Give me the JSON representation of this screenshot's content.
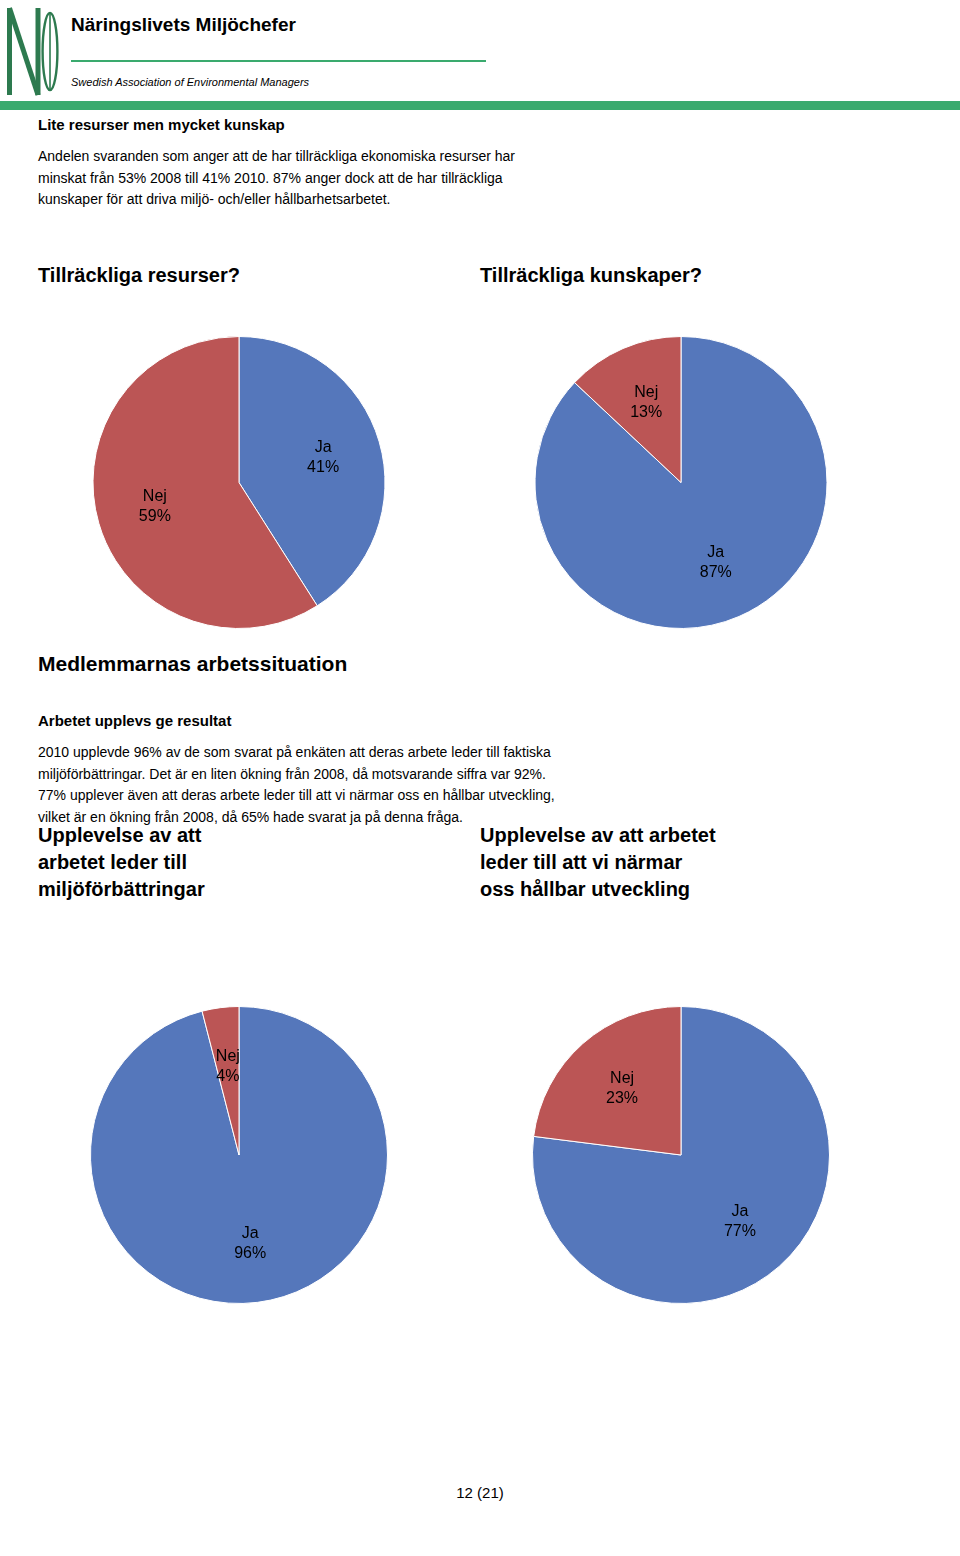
{
  "logo_name": "Näringslivets Miljöchefer",
  "logo_subtitle": "Swedish Association of Environmental Managers",
  "logo_color": "#2d7a4f",
  "rule_color": "#3aaa6e",
  "header_bold": "Lite resurser men mycket kunskap",
  "header_text": "Andelen svaranden som anger att de har tillräckliga ekonomiska resurser har\nminskat från 53% 2008 till 41% 2010. 87% anger dock att de har tillräckliga\nkunskaper för att driva miljö- och/eller hållbarhetsarbetet.",
  "section_title": "Medlemmarnas arbetssituation",
  "section_subtitle": "Arbetet upplevs ge resultat",
  "section_text": "2010 upplevde 96% av de som svarat på enkäten att deras arbete leder till faktiska\nmiljöförbättringar. Det är en liten ökning från 2008, då motsvarande siffra var 92%.\n77% upplever även att deras arbete leder till att vi närmar oss en hållbar utveckling,\nvilket är en ökning från 2008, då 65% hade svarat ja på denna fråga.",
  "page_number": "12 (21)",
  "chart_data": [
    {
      "type": "pie",
      "title": "Tillräckliga resurser?",
      "categories": [
        "Ja",
        "Nej"
      ],
      "values": [
        41,
        59
      ],
      "value_labels": [
        "41%",
        "59%"
      ],
      "colors": [
        "#5577bb",
        "#bb5555"
      ],
      "data_labels": true
    },
    {
      "type": "pie",
      "title": "Tillräckliga kunskaper?",
      "categories": [
        "Ja",
        "Nej"
      ],
      "values": [
        87,
        13
      ],
      "value_labels": [
        "87%",
        "13%"
      ],
      "colors": [
        "#5577bb",
        "#bb5555"
      ],
      "data_labels": true
    },
    {
      "type": "pie",
      "title": "Upplevelse av att\narbetet leder till\nmiljöförbättringar",
      "categories": [
        "Ja",
        "Nej"
      ],
      "values": [
        96,
        4
      ],
      "value_labels": [
        "96%",
        "4%"
      ],
      "colors": [
        "#5577bb",
        "#bb5555"
      ],
      "data_labels": true
    },
    {
      "type": "pie",
      "title": "Upplevelse av att arbetet\nleder till att vi närmar\noss hållbar utveckling",
      "categories": [
        "Ja",
        "Nej"
      ],
      "values": [
        77,
        23
      ],
      "value_labels": [
        "77%",
        "23%"
      ],
      "colors": [
        "#5577bb",
        "#bb5555"
      ],
      "data_labels": true
    }
  ]
}
